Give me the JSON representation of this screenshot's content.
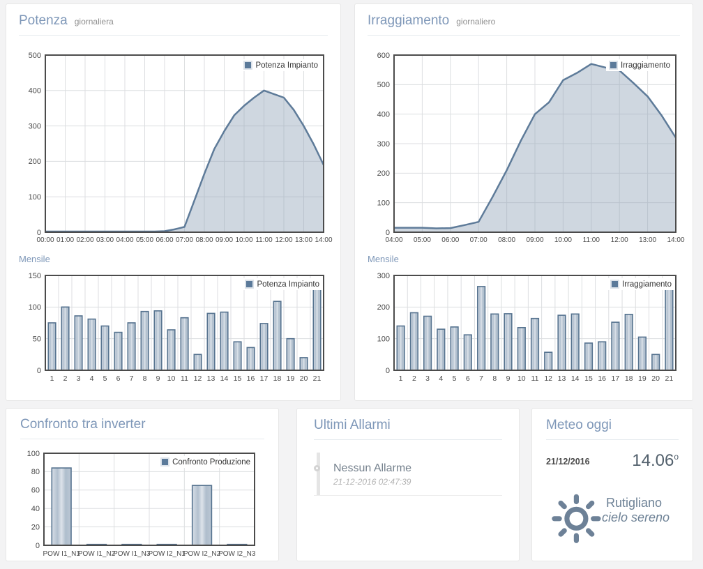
{
  "panels": {
    "potenza": {
      "title": "Potenza",
      "subtitle": "giornaliera",
      "monthly_label": "Mensile"
    },
    "irraggiamento": {
      "title": "Irraggiamento",
      "subtitle": "giornaliero",
      "monthly_label": "Mensile"
    },
    "inverter": {
      "title": "Confronto tra inverter"
    },
    "alarms": {
      "title": "Ultimi Allarmi",
      "entries": [
        {
          "label": "Nessun Allarme",
          "timestamp": "21-12-2016 02:47:39"
        }
      ]
    },
    "weather": {
      "title": "Meteo oggi",
      "date": "21/12/2016",
      "temperature": "14.06",
      "degree": "o",
      "location": "Rutigliano",
      "condition": "cielo sereno"
    }
  },
  "colors": {
    "accent_title": "#7e97b8",
    "series_line": "#5e7b99",
    "series_fill": "rgba(141,160,181,0.42)",
    "legend_swatch": "#5b7a9a",
    "sun_icon": "#6d8197"
  },
  "chart_data": [
    {
      "id": "potenza-daily",
      "type": "area",
      "title": "Potenza giornaliera",
      "legend": "Potenza Impianto",
      "x": [
        "00:00",
        "00:30",
        "01:00",
        "01:30",
        "02:00",
        "02:30",
        "03:00",
        "03:30",
        "04:00",
        "04:30",
        "05:00",
        "05:30",
        "06:00",
        "06:30",
        "07:00",
        "07:30",
        "08:00",
        "08:30",
        "09:00",
        "09:30",
        "10:00",
        "10:30",
        "11:00",
        "11:30",
        "12:00",
        "12:30",
        "13:00",
        "13:30",
        "14:00"
      ],
      "values": [
        2,
        2,
        2,
        2,
        2,
        2,
        2,
        2,
        2,
        2,
        2,
        2,
        3,
        8,
        15,
        90,
        165,
        235,
        285,
        330,
        357,
        380,
        400,
        390,
        380,
        345,
        300,
        248,
        190
      ],
      "xticks": [
        "00:00",
        "01:00",
        "02:00",
        "03:00",
        "04:00",
        "05:00",
        "06:00",
        "07:00",
        "08:00",
        "09:00",
        "10:00",
        "11:00",
        "12:00",
        "13:00",
        "14:00"
      ],
      "ylim": [
        0,
        500
      ],
      "ystep": 100,
      "grid": true,
      "legend_position": "top-right"
    },
    {
      "id": "potenza-monthly",
      "type": "bar",
      "title": "Mensile",
      "legend": "Potenza Impianto",
      "categories": [
        "1",
        "2",
        "3",
        "4",
        "5",
        "6",
        "7",
        "8",
        "9",
        "10",
        "11",
        "12",
        "13",
        "14",
        "15",
        "16",
        "17",
        "18",
        "19",
        "20",
        "21"
      ],
      "values": [
        75,
        100,
        86,
        81,
        70,
        60,
        75,
        93,
        94,
        64,
        83,
        25,
        90,
        92,
        45,
        36,
        74,
        109,
        50,
        20,
        135
      ],
      "ylim": [
        0,
        150
      ],
      "ystep": 50,
      "grid": true,
      "legend_position": "top-right"
    },
    {
      "id": "irraggiamento-daily",
      "type": "area",
      "title": "Irraggiamento giornaliero",
      "legend": "Irraggiamento",
      "x": [
        "04:00",
        "04:30",
        "05:00",
        "05:30",
        "06:00",
        "06:30",
        "07:00",
        "07:30",
        "08:00",
        "08:30",
        "09:00",
        "09:30",
        "10:00",
        "10:30",
        "11:00",
        "11:30",
        "12:00",
        "12:30",
        "13:00",
        "13:30",
        "14:00"
      ],
      "values": [
        15,
        15,
        15,
        13,
        14,
        24,
        35,
        120,
        210,
        310,
        400,
        440,
        515,
        540,
        570,
        558,
        548,
        505,
        460,
        395,
        320
      ],
      "xticks": [
        "04:00",
        "05:00",
        "06:00",
        "07:00",
        "08:00",
        "09:00",
        "10:00",
        "11:00",
        "12:00",
        "13:00",
        "14:00"
      ],
      "ylim": [
        0,
        600
      ],
      "ystep": 100,
      "grid": true,
      "legend_position": "top-right"
    },
    {
      "id": "irraggiamento-monthly",
      "type": "bar",
      "title": "Mensile",
      "legend": "Irraggiamento",
      "categories": [
        "1",
        "2",
        "3",
        "4",
        "5",
        "6",
        "7",
        "8",
        "9",
        "10",
        "11",
        "12",
        "13",
        "14",
        "15",
        "16",
        "17",
        "18",
        "19",
        "20",
        "21"
      ],
      "values": [
        140,
        182,
        171,
        130,
        137,
        112,
        265,
        178,
        179,
        135,
        164,
        57,
        174,
        178,
        86,
        90,
        152,
        177,
        105,
        50,
        287
      ],
      "ylim": [
        0,
        300
      ],
      "ystep": 100,
      "grid": true,
      "legend_position": "top-right"
    },
    {
      "id": "confronto-inverter",
      "type": "bar",
      "title": "Confronto tra inverter",
      "legend": "Confronto Produzione",
      "categories": [
        "POW I1_N1",
        "POW I1_N2",
        "POW I1_N3",
        "POW I2_N1",
        "POW I2_N2",
        "POW I2_N3"
      ],
      "values": [
        84,
        1,
        1,
        1,
        65,
        1
      ],
      "ylim": [
        0,
        100
      ],
      "ystep": 20,
      "grid": true,
      "legend_position": "top-right"
    }
  ]
}
